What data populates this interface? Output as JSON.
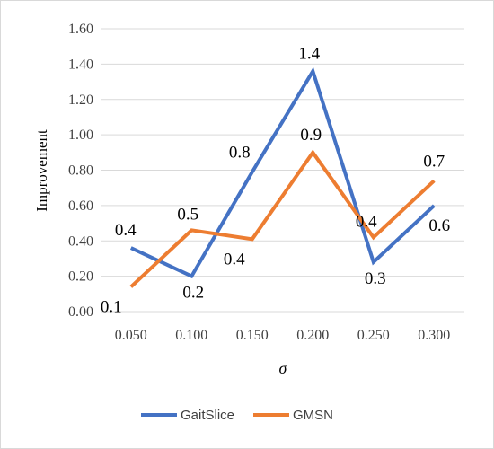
{
  "chart_data": {
    "type": "line",
    "x": [
      "0.050",
      "0.100",
      "0.150",
      "0.200",
      "0.250",
      "0.300"
    ],
    "ylabel": "Improvement",
    "xlabel": "σ",
    "ylim": [
      0,
      1.6
    ],
    "yticks": [
      "0.00",
      "0.20",
      "0.40",
      "0.60",
      "0.80",
      "1.00",
      "1.20",
      "1.40",
      "1.60"
    ],
    "grid": true,
    "legend": "bottom",
    "series": [
      {
        "name": "GaitSlice",
        "color": "#4472c4",
        "values": [
          0.36,
          0.2,
          0.79,
          1.36,
          0.28,
          0.6
        ],
        "labels": [
          "0.4",
          "0.2",
          "0.8",
          "1.4",
          "0.3",
          "0.6"
        ]
      },
      {
        "name": "GMSN",
        "color": "#ed7d31",
        "values": [
          0.14,
          0.46,
          0.41,
          0.9,
          0.42,
          0.74
        ],
        "labels": [
          "0.1",
          "0.5",
          "0.4",
          "0.9",
          "0.4",
          "0.7"
        ]
      }
    ]
  }
}
